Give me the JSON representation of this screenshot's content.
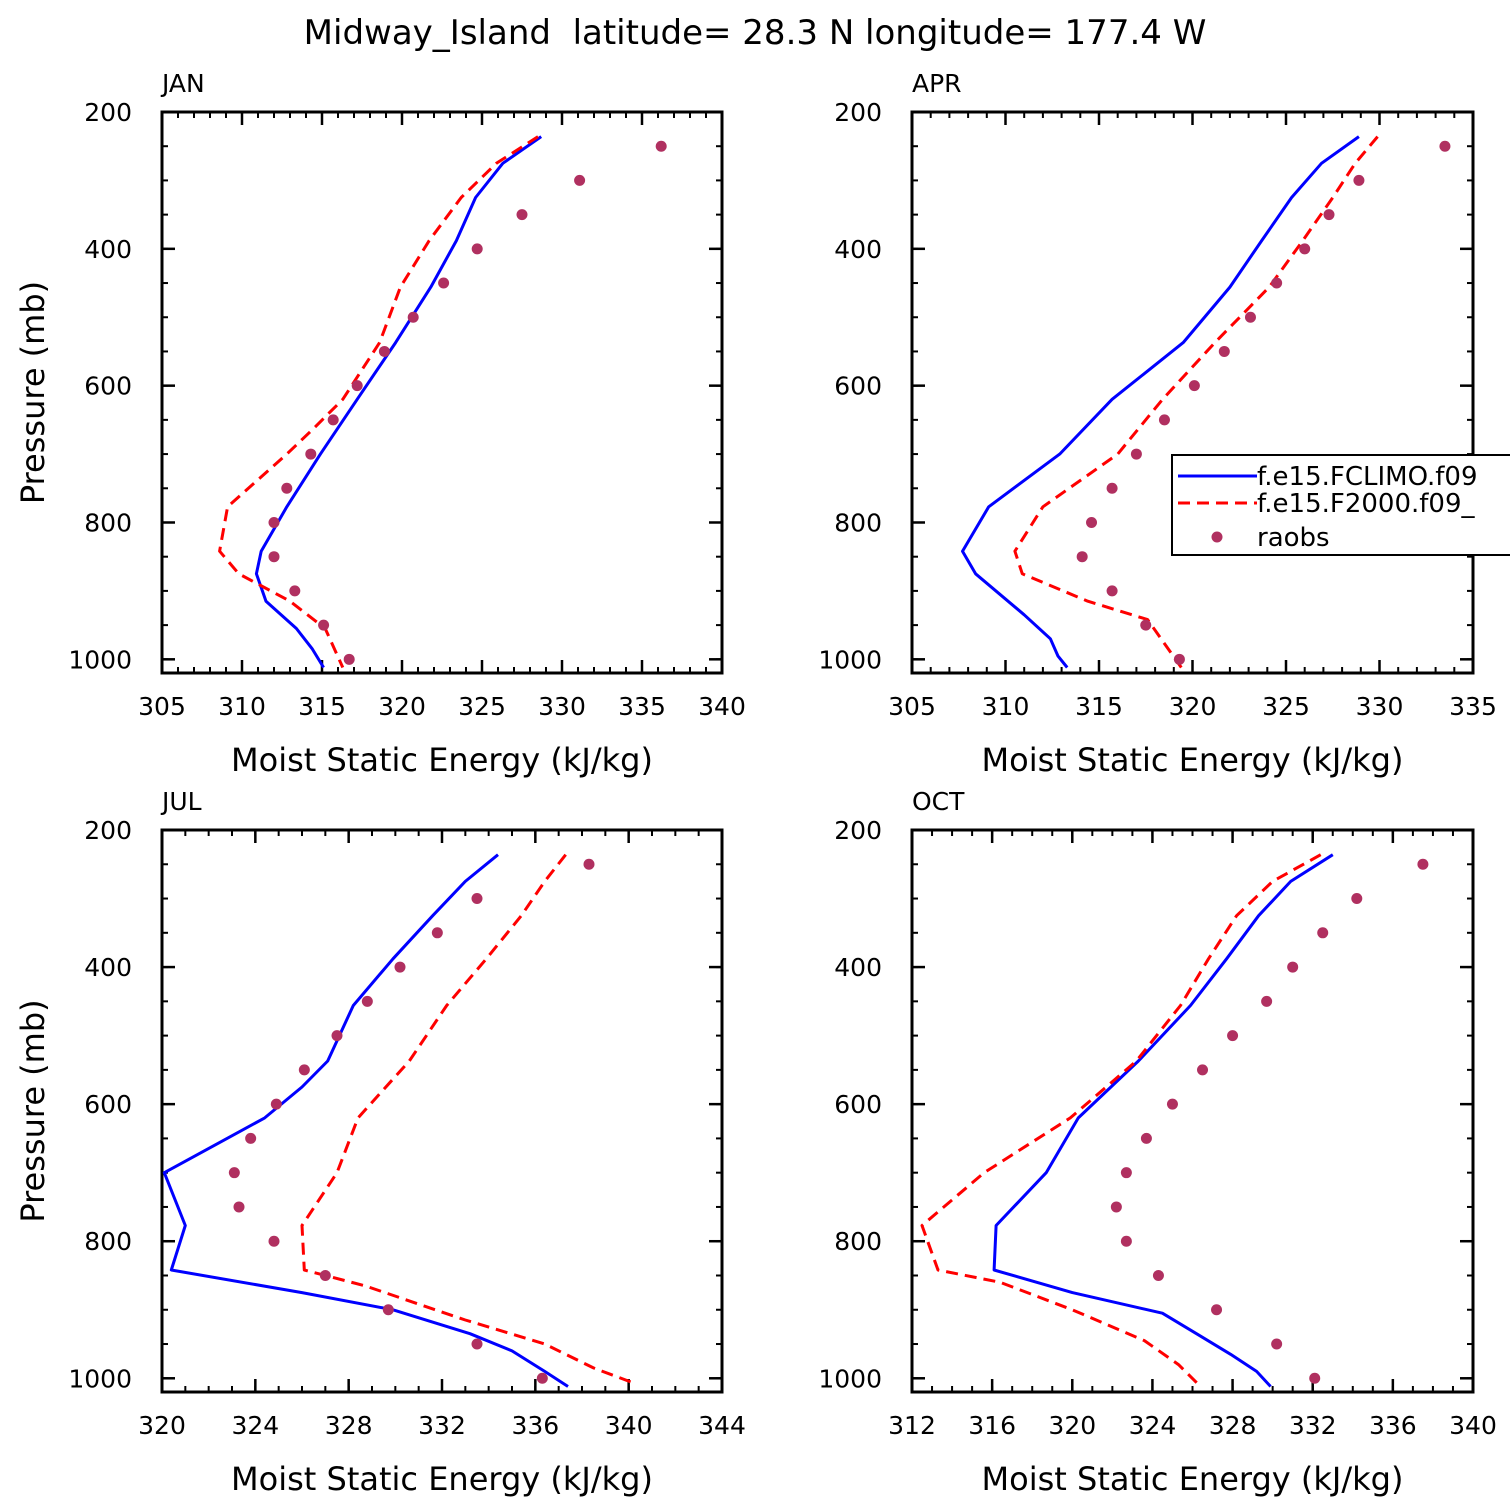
{
  "figure": {
    "title": "Midway_Island  latitude= 28.3 N longitude= 177.4 W"
  },
  "legend": {
    "placement": "right edge of APR panel, clipped by page",
    "entries": [
      {
        "label": "f.e15.FCLIMO.f09",
        "style": "solid",
        "color": "#0000ff"
      },
      {
        "label": "f.e15.F2000.f09_",
        "style": "dashed",
        "color": "#ff0000"
      },
      {
        "label": "raobs",
        "style": "marker",
        "color": "#b03060"
      }
    ]
  },
  "colors": {
    "fclimo": "#0000ff",
    "f2000": "#ff0000",
    "raobs": "#b03060"
  },
  "chart_data": [
    {
      "type": "line",
      "panel_label": "JAN",
      "xlabel": "Moist Static Energy (kJ/kg)",
      "ylabel": "Pressure (mb)",
      "xlim": [
        305,
        340
      ],
      "xticks": [
        305,
        310,
        315,
        320,
        325,
        330,
        335,
        340
      ],
      "xminor": 1,
      "ylim": [
        1020,
        200
      ],
      "yticks": [
        200,
        400,
        600,
        800,
        1000
      ],
      "yminor": 50,
      "y_inverted": true,
      "series": [
        {
          "name": "f.e15.FCLIMO.f09",
          "style": "solid",
          "x": [
            328.7,
            326.3,
            324.6,
            323.4,
            321.8,
            319.6,
            317.2,
            314.9,
            312.8,
            311.2,
            310.9,
            311.5,
            313.4,
            314.4,
            315.1
          ],
          "y": [
            236,
            275,
            325,
            388,
            456,
            537,
            620,
            700,
            777,
            842,
            875,
            915,
            955,
            985,
            1012
          ]
        },
        {
          "name": "f.e15.F2000.f09_",
          "style": "dashed",
          "x": [
            328.5,
            325.9,
            323.7,
            321.7,
            319.9,
            318.6,
            316.3,
            314.5,
            312.8,
            309.1,
            308.6,
            309.8,
            313.0,
            315.2,
            316.3
          ],
          "y": [
            236,
            275,
            325,
            388,
            456,
            537,
            620,
            662,
            700,
            777,
            842,
            875,
            915,
            955,
            1012
          ]
        }
      ],
      "points": {
        "name": "raobs",
        "x": [
          336.2,
          331.1,
          327.5,
          324.7,
          322.6,
          320.7,
          318.9,
          317.2,
          315.7,
          314.3,
          312.8,
          312.0,
          312.0,
          313.3,
          315.1,
          316.7
        ],
        "y": [
          250,
          300,
          350,
          400,
          450,
          500,
          550,
          600,
          650,
          700,
          750,
          800,
          850,
          900,
          950,
          1000
        ]
      }
    },
    {
      "type": "line",
      "panel_label": "APR",
      "xlabel": "Moist Static Energy (kJ/kg)",
      "ylabel": "",
      "xlim": [
        305,
        335
      ],
      "xticks": [
        305,
        310,
        315,
        320,
        325,
        330,
        335
      ],
      "xminor": 1,
      "ylim": [
        1020,
        200
      ],
      "yticks": [
        200,
        400,
        600,
        800,
        1000
      ],
      "yminor": 50,
      "y_inverted": true,
      "series": [
        {
          "name": "f.e15.FCLIMO.f09",
          "style": "solid",
          "x": [
            328.9,
            326.9,
            325.3,
            323.7,
            322.0,
            319.5,
            315.7,
            312.9,
            309.1,
            307.7,
            308.4,
            311.0,
            312.4,
            312.8,
            313.3
          ],
          "y": [
            236,
            275,
            325,
            388,
            456,
            537,
            620,
            700,
            777,
            842,
            875,
            935,
            970,
            995,
            1012
          ]
        },
        {
          "name": "f.e15.F2000.f09_",
          "style": "dashed",
          "x": [
            329.9,
            328.7,
            327.5,
            325.9,
            324.1,
            321.2,
            318.4,
            316.0,
            312.0,
            310.5,
            310.9,
            314.4,
            317.6,
            319.4
          ],
          "y": [
            236,
            275,
            325,
            388,
            456,
            537,
            620,
            700,
            777,
            842,
            875,
            915,
            942,
            1012
          ]
        }
      ],
      "points": {
        "name": "raobs",
        "x": [
          333.5,
          328.9,
          327.3,
          326.0,
          324.5,
          323.1,
          321.7,
          320.1,
          318.5,
          317.0,
          315.7,
          314.6,
          314.1,
          315.7,
          317.5,
          319.3
        ],
        "y": [
          250,
          300,
          350,
          400,
          450,
          500,
          550,
          600,
          650,
          700,
          750,
          800,
          850,
          900,
          950,
          1000
        ]
      }
    },
    {
      "type": "line",
      "panel_label": "JUL",
      "xlabel": "Moist Static Energy (kJ/kg)",
      "ylabel": "Pressure (mb)",
      "xlim": [
        320,
        344
      ],
      "xticks": [
        320,
        324,
        328,
        332,
        336,
        340,
        344
      ],
      "xminor": 1,
      "ylim": [
        1020,
        200
      ],
      "yticks": [
        200,
        400,
        600,
        800,
        1000
      ],
      "yminor": 50,
      "y_inverted": true,
      "series": [
        {
          "name": "f.e15.FCLIMO.f09",
          "style": "solid",
          "x": [
            334.4,
            333.0,
            331.6,
            329.9,
            328.2,
            327.1,
            326.0,
            324.4,
            320.1,
            321.0,
            320.4,
            326.0,
            329.9,
            333.2,
            335.0,
            336.4,
            337.4
          ],
          "y": [
            236,
            275,
            325,
            388,
            456,
            537,
            575,
            620,
            700,
            777,
            842,
            875,
            900,
            935,
            960,
            990,
            1012
          ]
        },
        {
          "name": "f.e15.F2000.f09_",
          "style": "dashed",
          "x": [
            337.3,
            336.4,
            335.4,
            333.9,
            332.2,
            330.6,
            328.4,
            327.5,
            326.0,
            326.1,
            328.7,
            333.0,
            336.4,
            338.5,
            340.3
          ],
          "y": [
            236,
            275,
            325,
            388,
            456,
            537,
            620,
            700,
            777,
            842,
            865,
            915,
            950,
            985,
            1008
          ]
        }
      ],
      "points": {
        "name": "raobs",
        "x": [
          338.3,
          333.5,
          331.8,
          330.2,
          328.8,
          327.5,
          326.1,
          324.9,
          323.8,
          323.1,
          323.3,
          324.8,
          327.0,
          329.7,
          333.5,
          336.3
        ],
        "y": [
          250,
          300,
          350,
          400,
          450,
          500,
          550,
          600,
          650,
          700,
          750,
          800,
          850,
          900,
          950,
          1000
        ]
      }
    },
    {
      "type": "line",
      "panel_label": "OCT",
      "xlabel": "Moist Static Energy (kJ/kg)",
      "ylabel": "",
      "xlim": [
        312,
        340
      ],
      "xticks": [
        312,
        316,
        320,
        324,
        328,
        332,
        336,
        340
      ],
      "xminor": 1,
      "ylim": [
        1020,
        200
      ],
      "yticks": [
        200,
        400,
        600,
        800,
        1000
      ],
      "yminor": 50,
      "y_inverted": true,
      "series": [
        {
          "name": "f.e15.FCLIMO.f09",
          "style": "solid",
          "x": [
            333.0,
            330.9,
            329.3,
            327.7,
            325.9,
            323.3,
            320.3,
            318.7,
            316.2,
            316.1,
            320.0,
            324.5,
            326.2,
            327.9,
            329.2,
            329.9
          ],
          "y": [
            236,
            275,
            325,
            388,
            456,
            537,
            620,
            700,
            777,
            842,
            875,
            905,
            935,
            965,
            990,
            1012
          ]
        },
        {
          "name": "f.e15.F2000.f09_",
          "style": "dashed",
          "x": [
            332.4,
            330.0,
            328.2,
            326.8,
            325.4,
            323.2,
            319.9,
            315.6,
            312.5,
            313.3,
            316.4,
            320.0,
            323.6,
            325.3,
            326.4
          ],
          "y": [
            236,
            275,
            325,
            388,
            456,
            537,
            620,
            700,
            777,
            842,
            860,
            900,
            945,
            980,
            1012
          ]
        }
      ],
      "points": {
        "name": "raobs",
        "x": [
          337.5,
          334.2,
          332.5,
          331.0,
          329.7,
          328.0,
          326.5,
          325.0,
          323.7,
          322.7,
          322.2,
          322.7,
          324.3,
          327.2,
          330.2,
          332.1
        ],
        "y": [
          250,
          300,
          350,
          400,
          450,
          500,
          550,
          600,
          650,
          700,
          750,
          800,
          850,
          900,
          950,
          1000
        ]
      }
    }
  ]
}
